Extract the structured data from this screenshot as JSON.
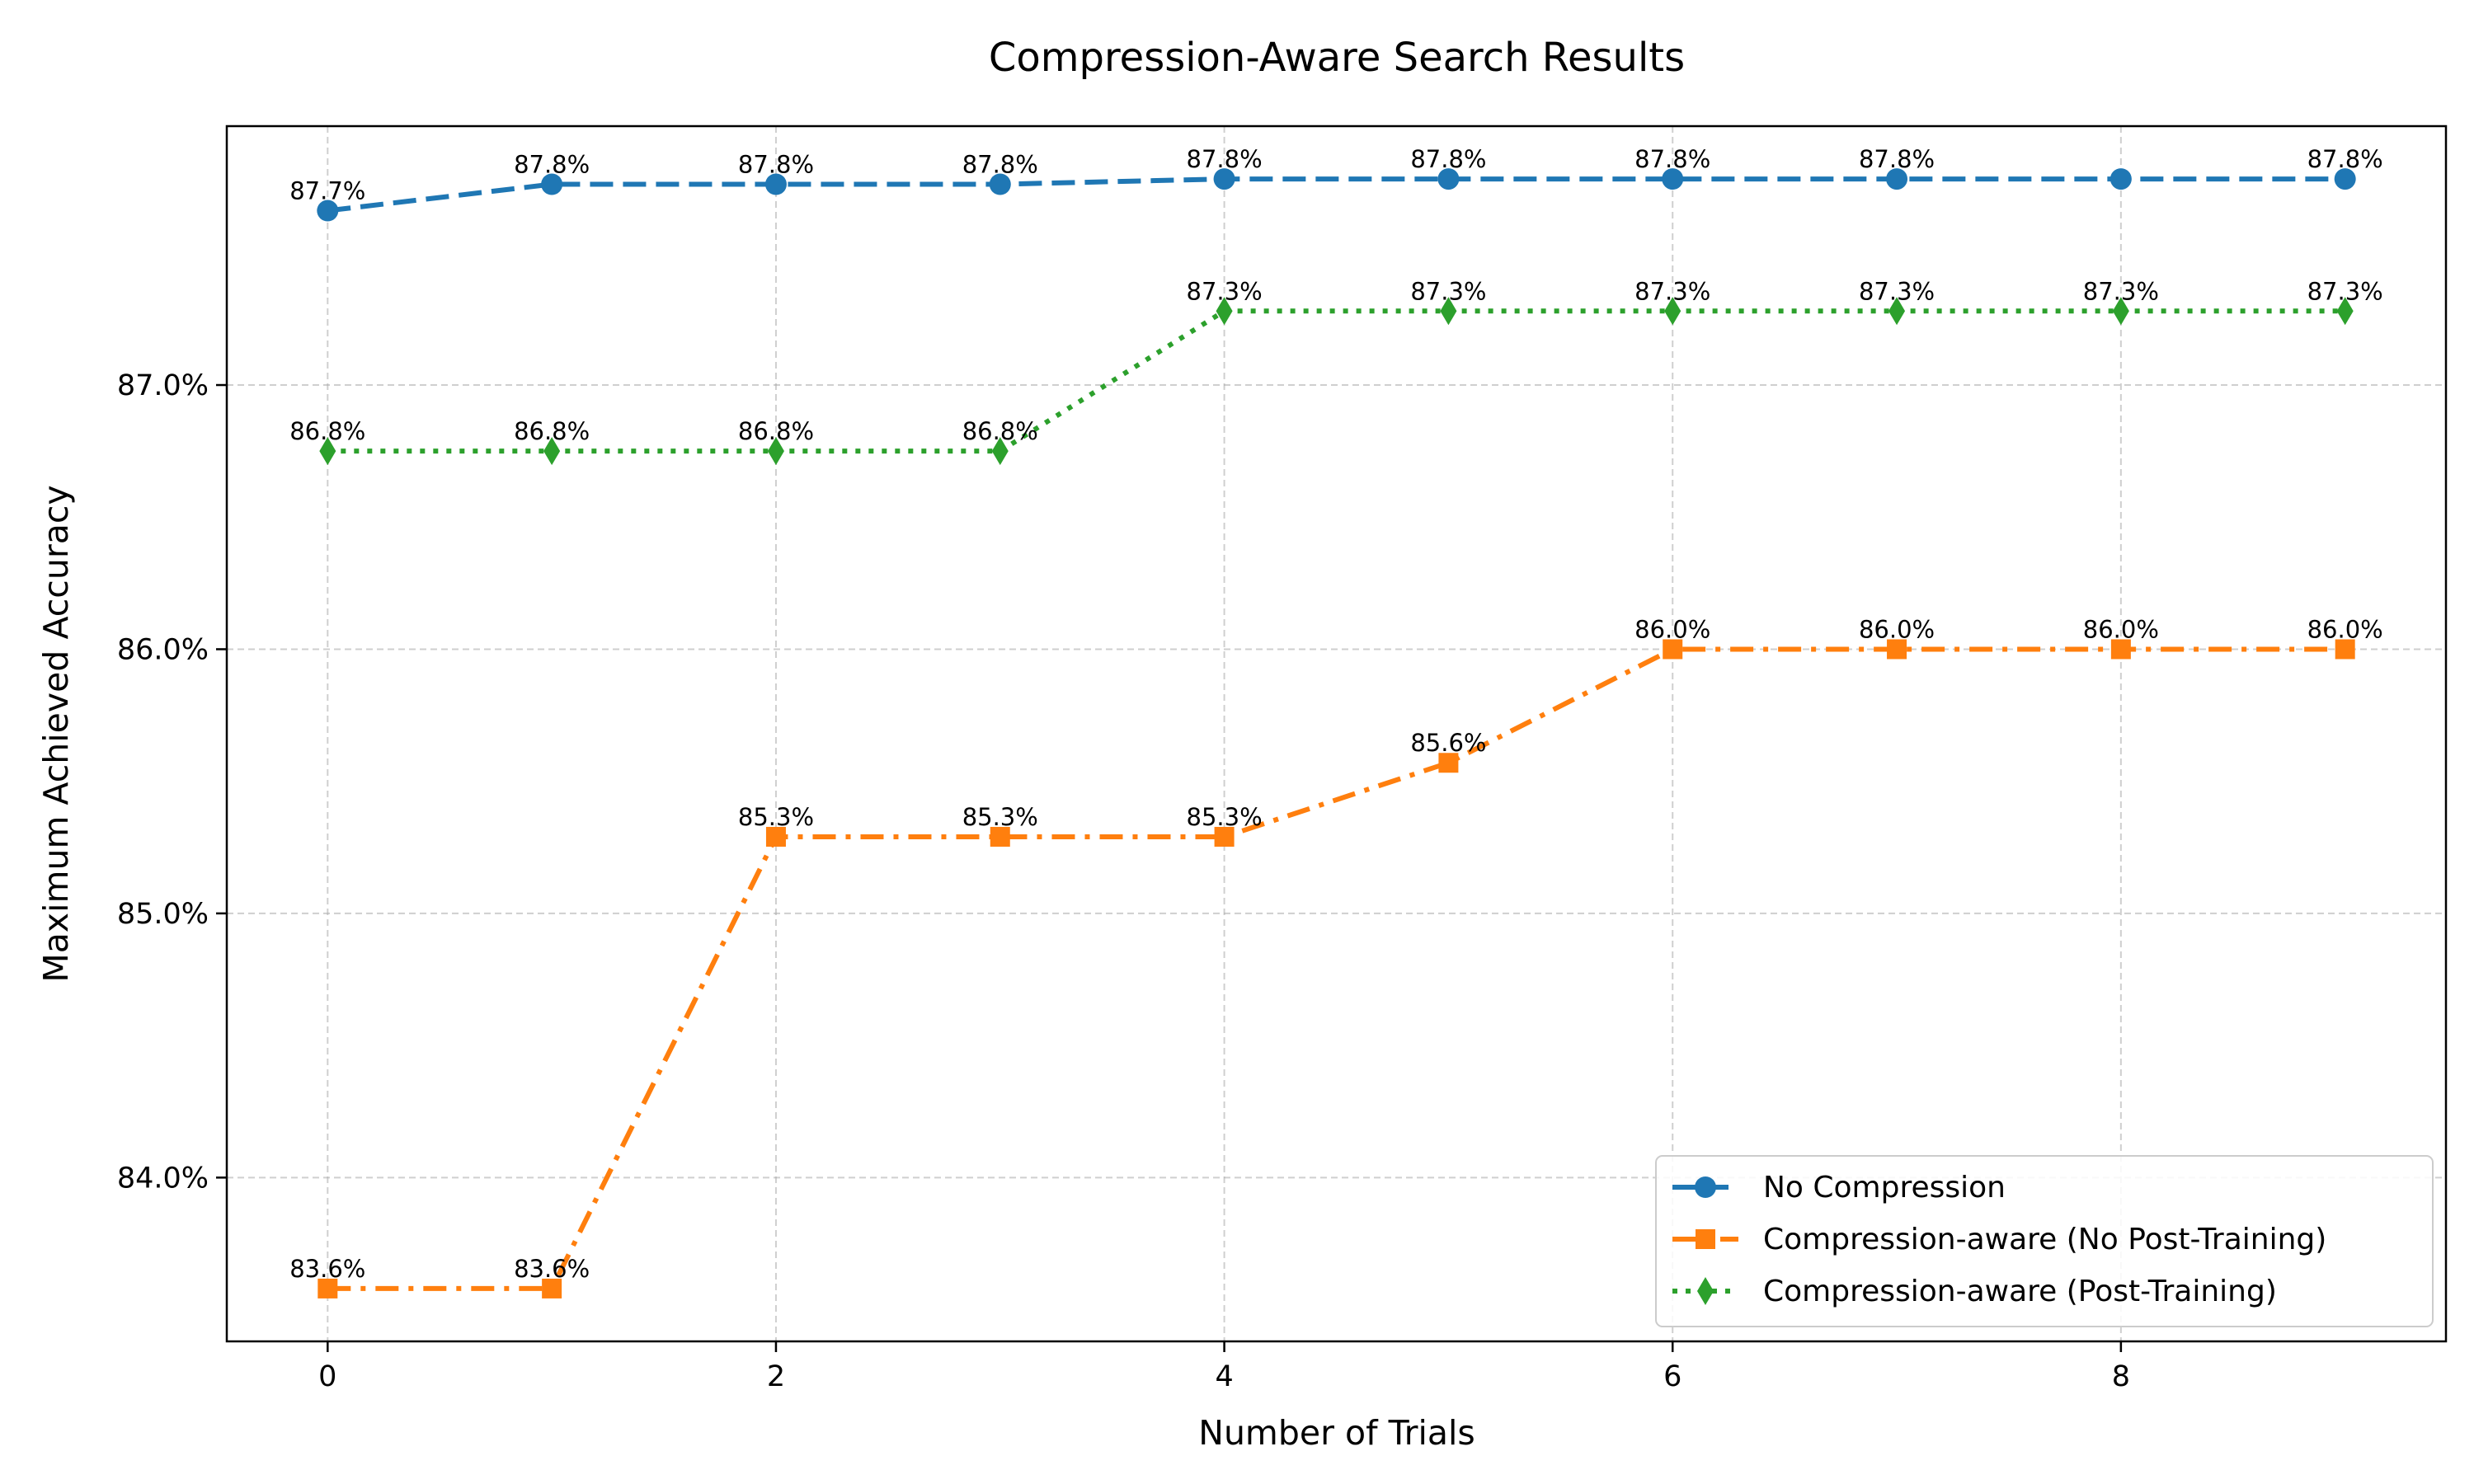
{
  "chart_data": {
    "type": "line",
    "title": "Compression-Aware Search Results",
    "xlabel": "Number of Trials",
    "ylabel": "Maximum Achieved Accuracy",
    "x": [
      0,
      1,
      2,
      3,
      4,
      5,
      6,
      7,
      8,
      9
    ],
    "xlim": [
      -0.45,
      9.45
    ],
    "ylim": [
      83.38,
      87.98
    ],
    "xticks": [
      0,
      2,
      4,
      6,
      8
    ],
    "xtick_labels": [
      "0",
      "2",
      "4",
      "6",
      "8"
    ],
    "yticks": [
      84.0,
      85.0,
      86.0,
      87.0
    ],
    "ytick_labels": [
      "84.0%",
      "85.0%",
      "86.0%",
      "87.0%"
    ],
    "grid": true,
    "legend_position": "lower-right",
    "series": [
      {
        "name": "No Compression",
        "color": "#1f77b4",
        "line_style": "dashed",
        "marker": "circle",
        "values": [
          87.66,
          87.76,
          87.76,
          87.76,
          87.78,
          87.78,
          87.78,
          87.78,
          87.78,
          87.78
        ],
        "labels": [
          "87.7%",
          "87.8%",
          "87.8%",
          "87.8%",
          "87.8%",
          "87.8%",
          "87.8%",
          "87.8%",
          "",
          "87.8%"
        ]
      },
      {
        "name": "Compression-aware (No Post-Training)",
        "color": "#ff7f0e",
        "line_style": "dashdot",
        "marker": "square",
        "values": [
          83.58,
          83.58,
          85.29,
          85.29,
          85.29,
          85.57,
          86.0,
          86.0,
          86.0,
          86.0
        ],
        "labels": [
          "83.6%",
          "83.6%",
          "85.3%",
          "85.3%",
          "85.3%",
          "85.6%",
          "86.0%",
          "86.0%",
          "86.0%",
          "86.0%"
        ]
      },
      {
        "name": "Compression-aware (Post-Training)",
        "color": "#2ca02c",
        "line_style": "dotted",
        "marker": "diamond",
        "values": [
          86.75,
          86.75,
          86.75,
          86.75,
          87.28,
          87.28,
          87.28,
          87.28,
          87.28,
          87.28
        ],
        "labels": [
          "86.8%",
          "86.8%",
          "86.8%",
          "86.8%",
          "87.3%",
          "87.3%",
          "87.3%",
          "87.3%",
          "87.3%",
          "87.3%"
        ]
      }
    ]
  }
}
